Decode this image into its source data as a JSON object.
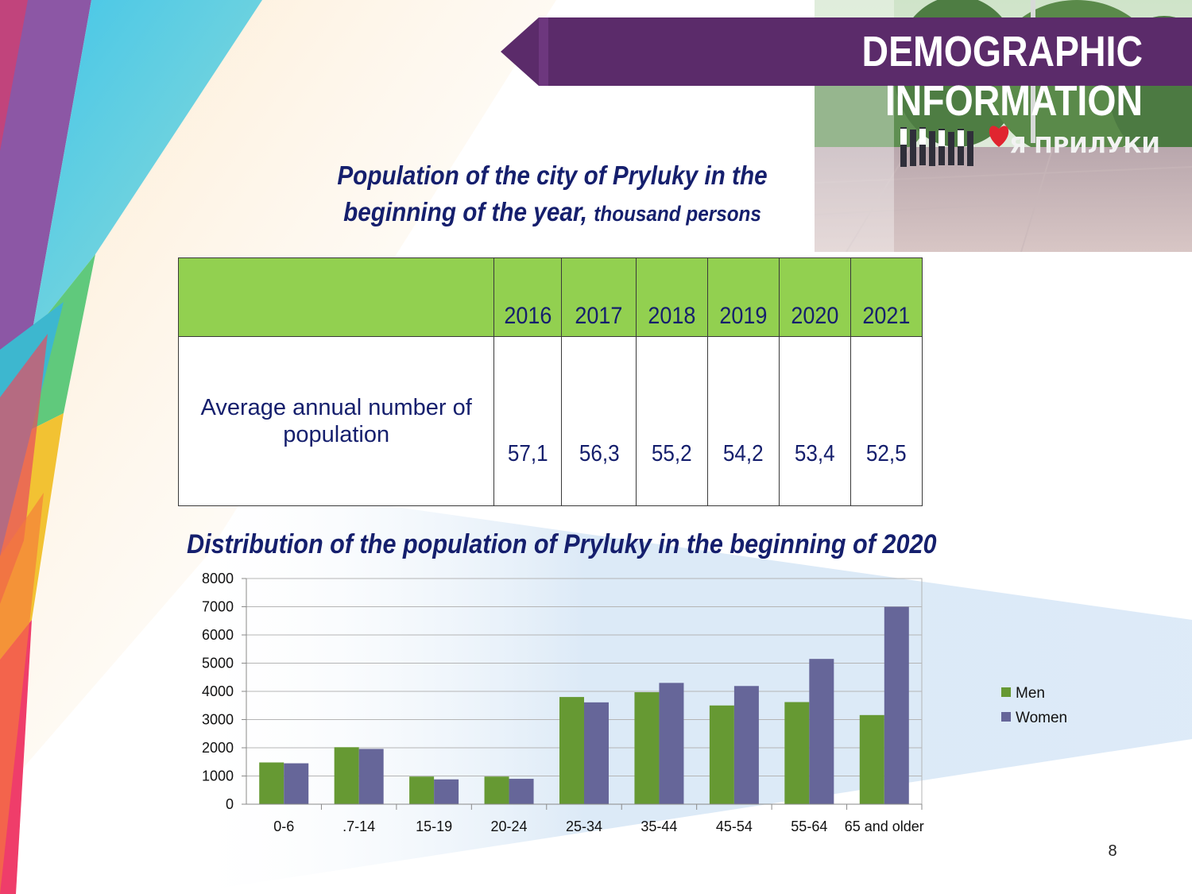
{
  "header": {
    "title": "DEMOGRAPHIC INFORMATION"
  },
  "photo": {
    "sign_text": "Я ПРИЛУКИ",
    "heart_color": "#e0252f"
  },
  "population_table": {
    "caption_line1": "Population of the city of Pryluky in the",
    "caption_line2": "beginning of the year,",
    "caption_unit": "thousand  persons",
    "years": [
      "2016",
      "2017",
      "2018",
      "2019",
      "2020",
      "2021"
    ],
    "row_label_line1": "Average annual number of",
    "row_label_line2": "population",
    "values": [
      "57,1",
      "56,3",
      "55,2",
      "54,2",
      "53,4",
      "52,5"
    ]
  },
  "chart_title": "Distribution of the population of Pryluky in the beginning of  2020",
  "chart_data": {
    "type": "bar",
    "categories": [
      "0-6",
      ".7-14",
      "15-19",
      "20-24",
      "25-34",
      "35-44",
      "45-54",
      "55-64",
      "65 and older"
    ],
    "series": [
      {
        "name": "Men",
        "color": "#669933",
        "values": [
          1480,
          2020,
          980,
          980,
          3800,
          3970,
          3500,
          3620,
          3160
        ]
      },
      {
        "name": "Women",
        "color": "#666699",
        "values": [
          1450,
          1960,
          880,
          900,
          3610,
          4300,
          4190,
          5150,
          7000
        ]
      }
    ],
    "ylim": [
      0,
      8000
    ],
    "yticks": [
      "0",
      "1000",
      "2000",
      "3000",
      "4000",
      "5000",
      "6000",
      "7000",
      "8000"
    ],
    "grid": true,
    "legend_position": "right"
  },
  "page_number": "8",
  "colors": {
    "banner": "#5b2b6a",
    "table_header": "#92d050",
    "title_text": "#151f6d"
  }
}
